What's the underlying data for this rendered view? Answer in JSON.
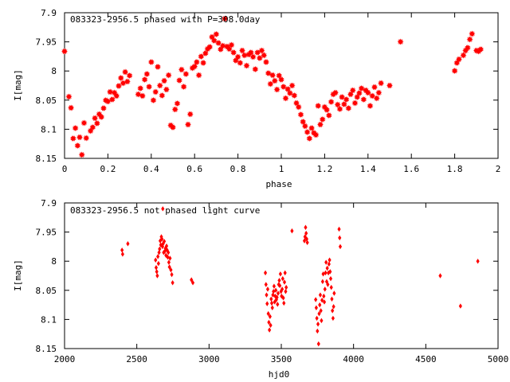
{
  "chart_data": [
    {
      "type": "scatter",
      "title": "083323-2956.5 phased with P=308.0day",
      "xlabel": "phase",
      "ylabel": "I[mag]",
      "xlim": [
        0,
        2
      ],
      "ylim": [
        7.9,
        8.15
      ],
      "y_inverted": true,
      "xticks": [
        "0",
        "0.2",
        "0.4",
        "0.6",
        "0.8",
        "1",
        "1.2",
        "1.4",
        "1.6",
        "1.8",
        "2"
      ],
      "yticks": [
        "7.9",
        "7.95",
        "8",
        "8.05",
        "8.1",
        "8.15"
      ],
      "marker_color": "#ff0000",
      "marker": "star",
      "points": [
        [
          0.0,
          7.966
        ],
        [
          0.02,
          8.044
        ],
        [
          0.03,
          8.063
        ],
        [
          0.04,
          8.116
        ],
        [
          0.05,
          8.098
        ],
        [
          0.06,
          8.128
        ],
        [
          0.07,
          8.114
        ],
        [
          0.08,
          8.144
        ],
        [
          0.09,
          8.089
        ],
        [
          0.1,
          8.115
        ],
        [
          0.12,
          8.103
        ],
        [
          0.13,
          8.097
        ],
        [
          0.14,
          8.081
        ],
        [
          0.15,
          8.09
        ],
        [
          0.16,
          8.074
        ],
        [
          0.17,
          8.079
        ],
        [
          0.18,
          8.064
        ],
        [
          0.19,
          8.05
        ],
        [
          0.2,
          8.052
        ],
        [
          0.21,
          8.036
        ],
        [
          0.22,
          8.049
        ],
        [
          0.23,
          8.037
        ],
        [
          0.24,
          8.043
        ],
        [
          0.25,
          8.026
        ],
        [
          0.26,
          8.012
        ],
        [
          0.27,
          8.021
        ],
        [
          0.28,
          8.002
        ],
        [
          0.29,
          8.018
        ],
        [
          0.3,
          8.008
        ],
        [
          0.34,
          8.04
        ],
        [
          0.35,
          8.03
        ],
        [
          0.36,
          8.043
        ],
        [
          0.37,
          8.015
        ],
        [
          0.38,
          8.005
        ],
        [
          0.39,
          8.027
        ],
        [
          0.4,
          7.985
        ],
        [
          0.41,
          8.05
        ],
        [
          0.42,
          8.036
        ],
        [
          0.43,
          7.993
        ],
        [
          0.44,
          8.025
        ],
        [
          0.45,
          8.042
        ],
        [
          0.46,
          8.017
        ],
        [
          0.47,
          8.032
        ],
        [
          0.48,
          8.007
        ],
        [
          0.49,
          8.093
        ],
        [
          0.5,
          8.097
        ],
        [
          0.51,
          8.066
        ],
        [
          0.52,
          8.056
        ],
        [
          0.53,
          8.016
        ],
        [
          0.54,
          7.998
        ],
        [
          0.55,
          8.027
        ],
        [
          0.56,
          8.005
        ],
        [
          0.57,
          8.092
        ],
        [
          0.58,
          8.074
        ],
        [
          0.59,
          7.995
        ],
        [
          0.6,
          7.992
        ],
        [
          0.61,
          7.985
        ],
        [
          0.62,
          8.007
        ],
        [
          0.63,
          7.975
        ],
        [
          0.64,
          7.986
        ],
        [
          0.65,
          7.97
        ],
        [
          0.66,
          7.962
        ],
        [
          0.67,
          7.959
        ],
        [
          0.68,
          7.942
        ],
        [
          0.69,
          7.948
        ],
        [
          0.7,
          7.937
        ],
        [
          0.71,
          7.952
        ],
        [
          0.72,
          7.963
        ],
        [
          0.73,
          7.957
        ],
        [
          0.74,
          7.91
        ],
        [
          0.75,
          7.958
        ],
        [
          0.76,
          7.962
        ],
        [
          0.77,
          7.955
        ],
        [
          0.78,
          7.968
        ],
        [
          0.79,
          7.982
        ],
        [
          0.8,
          7.976
        ],
        [
          0.81,
          7.986
        ],
        [
          0.82,
          7.965
        ],
        [
          0.83,
          7.973
        ],
        [
          0.84,
          7.991
        ],
        [
          0.85,
          7.972
        ],
        [
          0.86,
          7.968
        ],
        [
          0.87,
          7.976
        ],
        [
          0.88,
          7.997
        ],
        [
          0.89,
          7.968
        ],
        [
          0.9,
          7.978
        ],
        [
          0.91,
          7.965
        ],
        [
          0.92,
          7.973
        ],
        [
          0.93,
          7.985
        ],
        [
          0.94,
          8.004
        ],
        [
          0.95,
          8.022
        ],
        [
          0.96,
          8.007
        ],
        [
          0.97,
          8.017
        ],
        [
          0.98,
          8.032
        ],
        [
          0.99,
          8.008
        ],
        [
          1.0,
          8.015
        ],
        [
          1.01,
          8.027
        ],
        [
          1.02,
          8.047
        ],
        [
          1.03,
          8.031
        ],
        [
          1.04,
          8.038
        ],
        [
          1.05,
          8.025
        ],
        [
          1.06,
          8.042
        ],
        [
          1.07,
          8.055
        ],
        [
          1.08,
          8.062
        ],
        [
          1.09,
          8.075
        ],
        [
          1.1,
          8.087
        ],
        [
          1.11,
          8.095
        ],
        [
          1.12,
          8.105
        ],
        [
          1.13,
          8.116
        ],
        [
          1.14,
          8.098
        ],
        [
          1.15,
          8.106
        ],
        [
          1.16,
          8.11
        ],
        [
          1.17,
          8.06
        ],
        [
          1.18,
          8.092
        ],
        [
          1.19,
          8.083
        ],
        [
          1.2,
          8.062
        ],
        [
          1.21,
          8.067
        ],
        [
          1.22,
          8.076
        ],
        [
          1.23,
          8.053
        ],
        [
          1.24,
          8.04
        ],
        [
          1.25,
          8.037
        ],
        [
          1.26,
          8.058
        ],
        [
          1.27,
          8.065
        ],
        [
          1.28,
          8.045
        ],
        [
          1.29,
          8.057
        ],
        [
          1.3,
          8.049
        ],
        [
          1.31,
          8.064
        ],
        [
          1.32,
          8.04
        ],
        [
          1.33,
          8.033
        ],
        [
          1.34,
          8.055
        ],
        [
          1.35,
          8.045
        ],
        [
          1.36,
          8.038
        ],
        [
          1.37,
          8.03
        ],
        [
          1.38,
          8.049
        ],
        [
          1.39,
          8.033
        ],
        [
          1.4,
          8.037
        ],
        [
          1.41,
          8.06
        ],
        [
          1.42,
          8.043
        ],
        [
          1.43,
          8.028
        ],
        [
          1.44,
          8.047
        ],
        [
          1.45,
          8.037
        ],
        [
          1.46,
          8.021
        ],
        [
          1.5,
          8.025
        ],
        [
          1.55,
          7.95
        ],
        [
          1.8,
          8.0
        ],
        [
          1.81,
          7.986
        ],
        [
          1.82,
          7.98
        ],
        [
          1.84,
          7.973
        ],
        [
          1.85,
          7.965
        ],
        [
          1.86,
          7.96
        ],
        [
          1.87,
          7.946
        ],
        [
          1.88,
          7.936
        ],
        [
          1.9,
          7.965
        ],
        [
          1.91,
          7.966
        ],
        [
          1.92,
          7.963
        ]
      ]
    },
    {
      "type": "scatter",
      "title": "083323-2956.5 not phased light curve",
      "xlabel": "hjd0",
      "ylabel": "I[mag]",
      "xlim": [
        2000,
        5000
      ],
      "ylim": [
        7.9,
        8.15
      ],
      "y_inverted": true,
      "xticks": [
        "2000",
        "2500",
        "3000",
        "3500",
        "4000",
        "4500",
        "5000"
      ],
      "yticks": [
        "7.9",
        "7.95",
        "8",
        "8.05",
        "8.1",
        "8.15"
      ],
      "marker_color": "#ff0000",
      "marker": "diamond",
      "points": [
        [
          2398,
          7.981
        ],
        [
          2402,
          7.988
        ],
        [
          2438,
          7.97
        ],
        [
          2630,
          7.998
        ],
        [
          2634,
          8.011
        ],
        [
          2638,
          8.018
        ],
        [
          2642,
          8.025
        ],
        [
          2646,
          7.992
        ],
        [
          2650,
          8.004
        ],
        [
          2654,
          7.985
        ],
        [
          2658,
          7.979
        ],
        [
          2662,
          7.965
        ],
        [
          2666,
          7.972
        ],
        [
          2670,
          7.958
        ],
        [
          2674,
          7.962
        ],
        [
          2678,
          7.975
        ],
        [
          2682,
          7.97
        ],
        [
          2686,
          7.985
        ],
        [
          2690,
          7.966
        ],
        [
          2694,
          7.983
        ],
        [
          2698,
          7.978
        ],
        [
          2702,
          7.99
        ],
        [
          2706,
          7.974
        ],
        [
          2710,
          7.981
        ],
        [
          2714,
          7.993
        ],
        [
          2718,
          7.985
        ],
        [
          2722,
          8.002
        ],
        [
          2726,
          8.01
        ],
        [
          2730,
          7.995
        ],
        [
          2736,
          8.015
        ],
        [
          2742,
          8.023
        ],
        [
          2748,
          8.037
        ],
        [
          2680,
          7.91
        ],
        [
          2878,
          8.032
        ],
        [
          2888,
          8.037
        ],
        [
          3390,
          8.02
        ],
        [
          3394,
          8.04
        ],
        [
          3398,
          8.058
        ],
        [
          3402,
          8.073
        ],
        [
          3406,
          8.048
        ],
        [
          3410,
          8.09
        ],
        [
          3414,
          8.105
        ],
        [
          3418,
          8.118
        ],
        [
          3422,
          8.095
        ],
        [
          3426,
          8.11
        ],
        [
          3430,
          8.065
        ],
        [
          3434,
          8.072
        ],
        [
          3438,
          8.08
        ],
        [
          3442,
          8.058
        ],
        [
          3446,
          8.052
        ],
        [
          3450,
          8.043
        ],
        [
          3454,
          8.07
        ],
        [
          3458,
          8.06
        ],
        [
          3462,
          8.05
        ],
        [
          3466,
          8.066
        ],
        [
          3470,
          8.062
        ],
        [
          3474,
          8.074
        ],
        [
          3478,
          8.055
        ],
        [
          3482,
          8.04
        ],
        [
          3486,
          8.033
        ],
        [
          3490,
          8.042
        ],
        [
          3494,
          8.022
        ],
        [
          3498,
          8.052
        ],
        [
          3502,
          8.06
        ],
        [
          3506,
          8.048
        ],
        [
          3510,
          8.03
        ],
        [
          3514,
          8.063
        ],
        [
          3518,
          8.072
        ],
        [
          3522,
          8.036
        ],
        [
          3526,
          8.02
        ],
        [
          3530,
          8.052
        ],
        [
          3534,
          8.045
        ],
        [
          3574,
          7.948
        ],
        [
          3660,
          7.965
        ],
        [
          3664,
          7.958
        ],
        [
          3668,
          7.942
        ],
        [
          3672,
          7.952
        ],
        [
          3676,
          7.962
        ],
        [
          3680,
          7.968
        ],
        [
          3738,
          8.066
        ],
        [
          3742,
          8.08
        ],
        [
          3746,
          8.098
        ],
        [
          3750,
          8.12
        ],
        [
          3754,
          8.108
        ],
        [
          3758,
          8.142
        ],
        [
          3762,
          8.09
        ],
        [
          3766,
          8.075
        ],
        [
          3770,
          8.058
        ],
        [
          3774,
          8.085
        ],
        [
          3778,
          8.102
        ],
        [
          3782,
          8.067
        ],
        [
          3786,
          8.035
        ],
        [
          3790,
          8.022
        ],
        [
          3794,
          8.06
        ],
        [
          3798,
          8.07
        ],
        [
          3802,
          8.048
        ],
        [
          3806,
          8.02
        ],
        [
          3810,
          8.002
        ],
        [
          3814,
          8.035
        ],
        [
          3818,
          8.012
        ],
        [
          3822,
          8.04
        ],
        [
          3826,
          8.02
        ],
        [
          3830,
          8.005
        ],
        [
          3834,
          7.998
        ],
        [
          3838,
          8.018
        ],
        [
          3842,
          8.03
        ],
        [
          3846,
          8.045
        ],
        [
          3850,
          8.065
        ],
        [
          3854,
          8.085
        ],
        [
          3858,
          8.098
        ],
        [
          3862,
          8.078
        ],
        [
          3866,
          8.055
        ],
        [
          3900,
          7.945
        ],
        [
          3904,
          7.96
        ],
        [
          3908,
          7.975
        ],
        [
          4600,
          8.025
        ],
        [
          4740,
          8.077
        ],
        [
          4860,
          8.0
        ]
      ]
    }
  ]
}
